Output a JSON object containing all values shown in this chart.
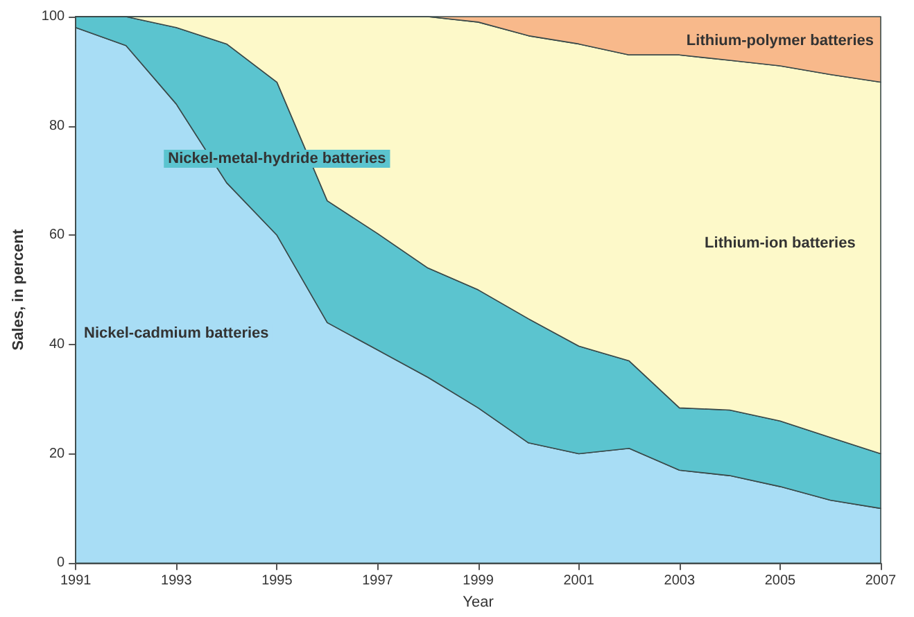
{
  "chart_data": {
    "type": "area",
    "stacked": true,
    "xlabel": "Year",
    "ylabel": "Sales, in percent",
    "x": [
      1991,
      1992,
      1993,
      1994,
      1995,
      1996,
      1997,
      1998,
      1999,
      2000,
      2001,
      2002,
      2003,
      2004,
      2005,
      2006,
      2007
    ],
    "series": [
      {
        "name": "Nickel-cadmium batteries",
        "color": "#a8ddf5",
        "values": [
          98,
          94.7,
          84,
          69.6,
          60,
          44,
          39,
          34,
          28.4,
          22,
          20,
          21,
          17,
          16,
          14,
          11.5,
          10
        ]
      },
      {
        "name": "Nickel-metal-hydride batteries",
        "color": "#5bc4cf",
        "values": [
          2,
          5.3,
          14,
          25.4,
          28,
          22.3,
          21.3,
          20,
          21.6,
          22.7,
          19.7,
          16,
          11.4,
          12,
          12,
          11.5,
          10
        ]
      },
      {
        "name": "Lithium-ion batteries",
        "color": "#fdf9c9",
        "values": [
          0,
          0,
          2,
          5,
          12,
          33.7,
          39.7,
          46,
          49,
          51.8,
          55.3,
          56,
          64.6,
          64,
          65,
          66.4,
          68
        ]
      },
      {
        "name": "Lithium-polymer batteries",
        "color": "#f8b98b",
        "values": [
          0,
          0,
          0,
          0,
          0,
          0,
          0,
          0,
          1,
          3.5,
          5,
          7,
          7,
          8,
          9,
          10.6,
          12
        ]
      }
    ],
    "xlim": [
      1991,
      2007
    ],
    "xticks": [
      1991,
      1993,
      1995,
      1997,
      1999,
      2001,
      2003,
      2005,
      2007
    ],
    "ylim": [
      0,
      100
    ],
    "yticks": [
      0,
      20,
      40,
      60,
      80,
      100
    ],
    "grid": false,
    "legend": false
  }
}
